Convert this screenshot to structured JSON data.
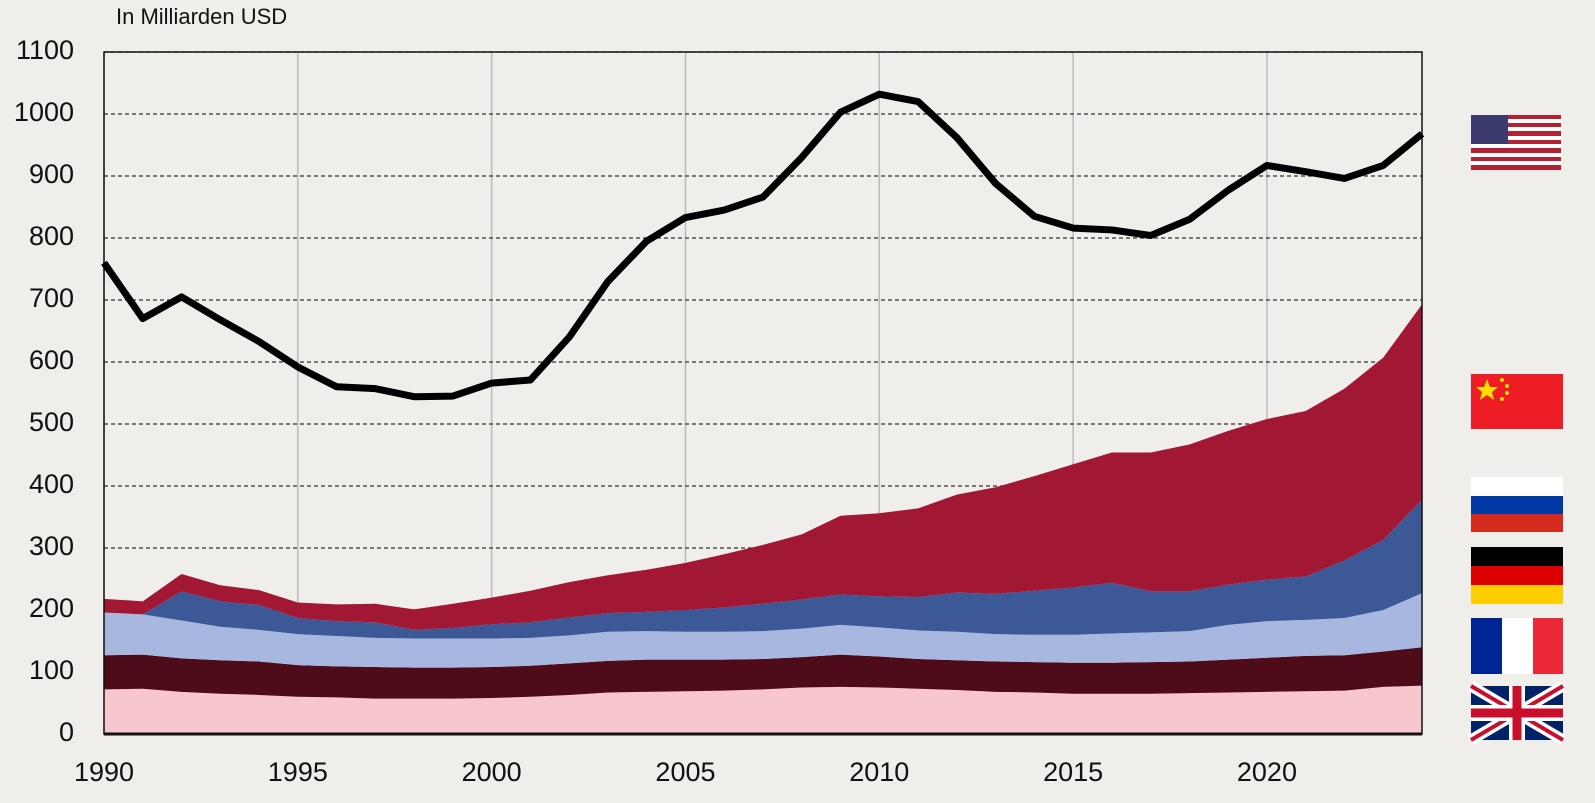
{
  "chart_data": {
    "type": "stacked-area",
    "y_label": "In Milliarden USD",
    "x": [
      1990,
      1991,
      1992,
      1993,
      1994,
      1995,
      1996,
      1997,
      1998,
      1999,
      2000,
      2001,
      2002,
      2003,
      2004,
      2005,
      2006,
      2007,
      2008,
      2009,
      2010,
      2011,
      2012,
      2013,
      2014,
      2015,
      2016,
      2017,
      2018,
      2019,
      2020,
      2021,
      2022,
      2023,
      2024
    ],
    "xlim": [
      1990,
      2024
    ],
    "xticks": [
      1990,
      1995,
      2000,
      2005,
      2010,
      2015,
      2020
    ],
    "ylim": [
      0,
      1100
    ],
    "yticks": [
      0,
      100,
      200,
      300,
      400,
      500,
      600,
      700,
      800,
      900,
      1000,
      1100
    ],
    "grid": true,
    "series": [
      {
        "type": "area",
        "color": "#f7c6cf",
        "values": [
          72,
          73,
          68,
          65,
          63,
          60,
          59,
          57,
          57,
          57,
          58,
          60,
          63,
          67,
          68,
          69,
          70,
          72,
          75,
          76,
          75,
          73,
          71,
          68,
          67,
          65,
          65,
          65,
          66,
          67,
          68,
          69,
          70,
          76,
          78
        ]
      },
      {
        "type": "area",
        "color": "#4e0c1a",
        "values": [
          55,
          55,
          54,
          54,
          54,
          51,
          50,
          51,
          50,
          50,
          50,
          50,
          51,
          51,
          52,
          51,
          50,
          49,
          49,
          52,
          50,
          48,
          48,
          49,
          49,
          50,
          50,
          51,
          51,
          53,
          55,
          57,
          57,
          57,
          62
        ]
      },
      {
        "type": "area",
        "color": "#a8b7df",
        "values": [
          69,
          65,
          61,
          54,
          51,
          50,
          49,
          47,
          47,
          47,
          46,
          45,
          45,
          47,
          46,
          45,
          45,
          45,
          46,
          48,
          47,
          46,
          46,
          44,
          44,
          45,
          47,
          48,
          49,
          56,
          59,
          58,
          60,
          67,
          87
        ]
      },
      {
        "type": "area",
        "color": "#3c5897",
        "values": [
          0,
          0,
          47,
          41,
          40,
          26,
          24,
          25,
          14,
          17,
          23,
          25,
          29,
          30,
          31,
          35,
          39,
          44,
          47,
          49,
          50,
          54,
          63,
          65,
          71,
          76,
          82,
          66,
          64,
          65,
          67,
          70,
          93,
          113,
          151
        ]
      },
      {
        "type": "area",
        "color": "#a21834",
        "values": [
          22,
          21,
          28,
          26,
          24,
          25,
          27,
          30,
          33,
          39,
          43,
          51,
          57,
          61,
          68,
          76,
          86,
          95,
          105,
          127,
          134,
          143,
          158,
          172,
          185,
          199,
          210,
          224,
          237,
          248,
          259,
          267,
          277,
          294,
          315
        ]
      },
      {
        "type": "line",
        "color": "#000000",
        "values": [
          760,
          670,
          705,
          668,
          633,
          592,
          560,
          557,
          544,
          545,
          566,
          571,
          640,
          730,
          795,
          833,
          845,
          866,
          930,
          1003,
          1032,
          1020,
          962,
          888,
          835,
          816,
          813,
          804,
          830,
          877,
          917,
          907,
          896,
          917,
          968
        ]
      }
    ]
  }
}
